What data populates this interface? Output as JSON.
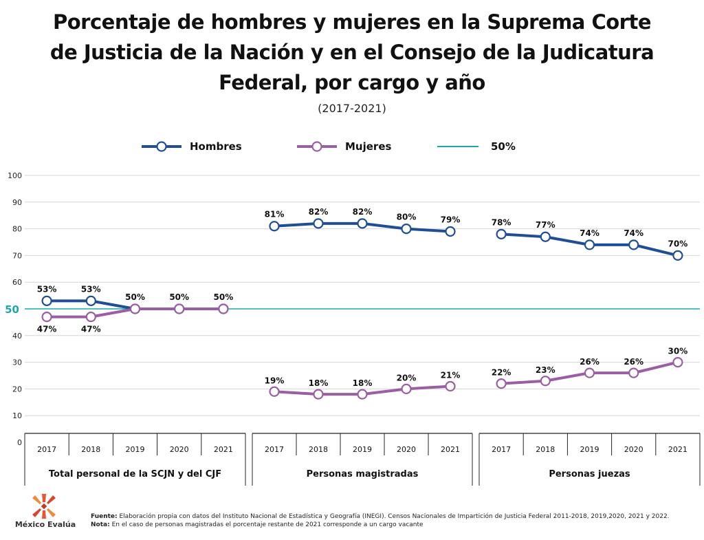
{
  "title_lines": [
    "Porcentaje de hombres y mujeres en la Suprema Corte",
    "de Justicia de la Nación y en el Consejo de la Judicatura",
    "Federal, por cargo y año"
  ],
  "subtitle": "(2017-2021)",
  "colors": {
    "hombres": "#1f4e96",
    "mujeres": "#9b5ea4",
    "ref": "#1aa8a8",
    "grid": "#d6d6d6"
  },
  "legend": {
    "hombres": "Hombres",
    "mujeres": "Mujeres",
    "ref": "50%"
  },
  "chart_data": {
    "type": "line",
    "ylim": [
      0,
      100
    ],
    "yticks": [
      "0",
      "10",
      "20",
      "30",
      "40",
      "50",
      "60",
      "70",
      "80",
      "90",
      "100"
    ],
    "reference_line": {
      "value": 50,
      "label": "50"
    },
    "grid": true,
    "legend_position": "top",
    "groups": [
      {
        "name": "Total personal de la SCJN y del CJF",
        "categories": [
          "2017",
          "2018",
          "2019",
          "2020",
          "2021"
        ],
        "series": [
          {
            "name": "Hombres",
            "values": [
              53,
              53,
              50,
              50,
              50
            ],
            "labels": [
              "53%",
              "53%",
              "50%",
              "50%",
              "50%"
            ]
          },
          {
            "name": "Mujeres",
            "values": [
              47,
              47,
              50,
              50,
              50
            ],
            "labels": [
              "47%",
              "47%",
              "",
              "",
              ""
            ]
          }
        ]
      },
      {
        "name": "Personas magistradas",
        "categories": [
          "2017",
          "2018",
          "2019",
          "2020",
          "2021"
        ],
        "series": [
          {
            "name": "Hombres",
            "values": [
              81,
              82,
              82,
              80,
              79
            ],
            "labels": [
              "81%",
              "82%",
              "82%",
              "80%",
              "79%"
            ]
          },
          {
            "name": "Mujeres",
            "values": [
              19,
              18,
              18,
              20,
              21
            ],
            "labels": [
              "19%",
              "18%",
              "18%",
              "20%",
              "21%"
            ]
          }
        ]
      },
      {
        "name": "Personas juezas",
        "categories": [
          "2017",
          "2018",
          "2019",
          "2020",
          "2021"
        ],
        "series": [
          {
            "name": "Hombres",
            "values": [
              78,
              77,
              74,
              74,
              70
            ],
            "labels": [
              "78%",
              "77%",
              "74%",
              "74%",
              "70%"
            ]
          },
          {
            "name": "Mujeres",
            "values": [
              22,
              23,
              26,
              26,
              30
            ],
            "labels": [
              "22%",
              "23%",
              "26%",
              "26%",
              "30%"
            ]
          }
        ]
      }
    ]
  },
  "logo_text": "México Evalúa",
  "footer": {
    "fuente_label": "Fuente:",
    "fuente_text": " Elaboración propia con datos del Instituto Nacional de Estadística y Geografía (INEGI). Censos Nacionales de Impartición de Justicia Federal 2011-2018, 2019,2020, 2021 y 2022.",
    "nota_label": "Nota:",
    "nota_text": " En el caso de personas magistradas el porcentaje restante de 2021 corresponde a un cargo vacante"
  }
}
